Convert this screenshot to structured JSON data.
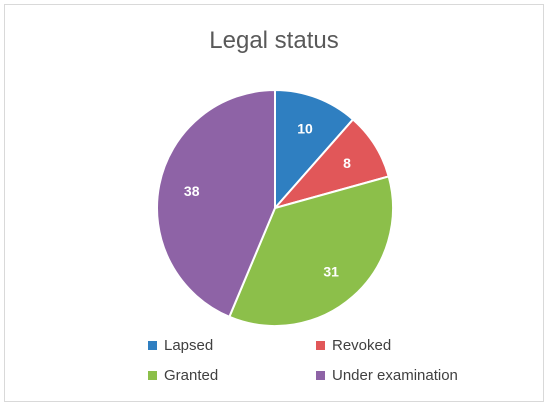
{
  "chart_data": {
    "type": "pie",
    "title": "Legal status",
    "categories": [
      "Lapsed",
      "Revoked",
      "Granted",
      "Under examination"
    ],
    "values": [
      10,
      8,
      31,
      38
    ],
    "colors": [
      "#2f7fc1",
      "#e15759",
      "#8cbf4a",
      "#8e63a6"
    ],
    "legend_position": "bottom",
    "data_labels": true
  }
}
